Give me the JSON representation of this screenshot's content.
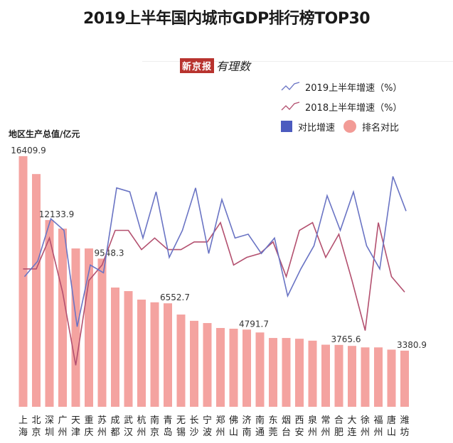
{
  "chart_data": {
    "type": "bar",
    "title": "2019上半年国内城市GDP排行榜TOP30",
    "ylabel": "地区生产总值/亿元",
    "logo": {
      "text": "新京报",
      "script": "有理数"
    },
    "legend": [
      "2019上半年增速（%）",
      "2018上半年增速（%）",
      "对比增速",
      "排名对比"
    ],
    "legend_placement": "top-right",
    "grid": false,
    "colors": {
      "bar": "#f4a3a0",
      "growth2019": "#6a74c4",
      "growth2018": "#b3506f",
      "legend_square": "#4c5bbf",
      "legend_dot": "#f29b96"
    },
    "categories": [
      "上海",
      "北京",
      "深圳",
      "广州",
      "天津",
      "重庆",
      "苏州",
      "成都",
      "武汉",
      "杭州",
      "南京",
      "青岛",
      "无锡",
      "长沙",
      "宁波",
      "郑州",
      "佛山",
      "济南",
      "南通",
      "东莞",
      "烟台",
      "西安",
      "泉州",
      "常州",
      "合肥",
      "大连",
      "徐州",
      "福州",
      "唐山",
      "潍坊"
    ],
    "gdp": [
      16409.9,
      15212.5,
      12133.9,
      11560,
      10230,
      10230,
      9548.3,
      7610,
      7370,
      6800,
      6620,
      6552.7,
      5800,
      5380,
      5230,
      4900,
      4850,
      4791.7,
      4600,
      4230,
      4230,
      4180,
      4050,
      3780,
      3765.6,
      3700,
      3600,
      3600,
      3450,
      3380.9
    ],
    "gdp_labels": {
      "0": "16409.9",
      "2": "12133.9",
      "6": "9548.3",
      "11": "6552.7",
      "17": "4791.7",
      "24": "3765.6",
      "29": "3380.9"
    },
    "series": [
      {
        "name": "2019上半年增速（%）",
        "values": [
          5.9,
          6.3,
          7.4,
          7.1,
          4.6,
          6.2,
          6.0,
          8.2,
          8.1,
          6.9,
          8.1,
          6.4,
          7.1,
          8.2,
          6.5,
          7.9,
          6.9,
          7.0,
          6.5,
          6.9,
          5.4,
          6.1,
          6.7,
          8.0,
          7.1,
          8.1,
          6.7,
          6.1,
          8.5,
          7.6
        ]
      },
      {
        "name": "2018上半年增速（%）",
        "values": [
          6.1,
          6.1,
          6.9,
          5.5,
          3.6,
          5.8,
          6.2,
          7.1,
          7.1,
          6.6,
          6.9,
          6.6,
          6.6,
          6.8,
          6.8,
          7.3,
          6.2,
          6.4,
          6.5,
          6.8,
          5.9,
          7.1,
          7.3,
          6.4,
          7.0,
          5.8,
          4.5,
          7.3,
          5.9,
          5.5
        ]
      }
    ]
  }
}
